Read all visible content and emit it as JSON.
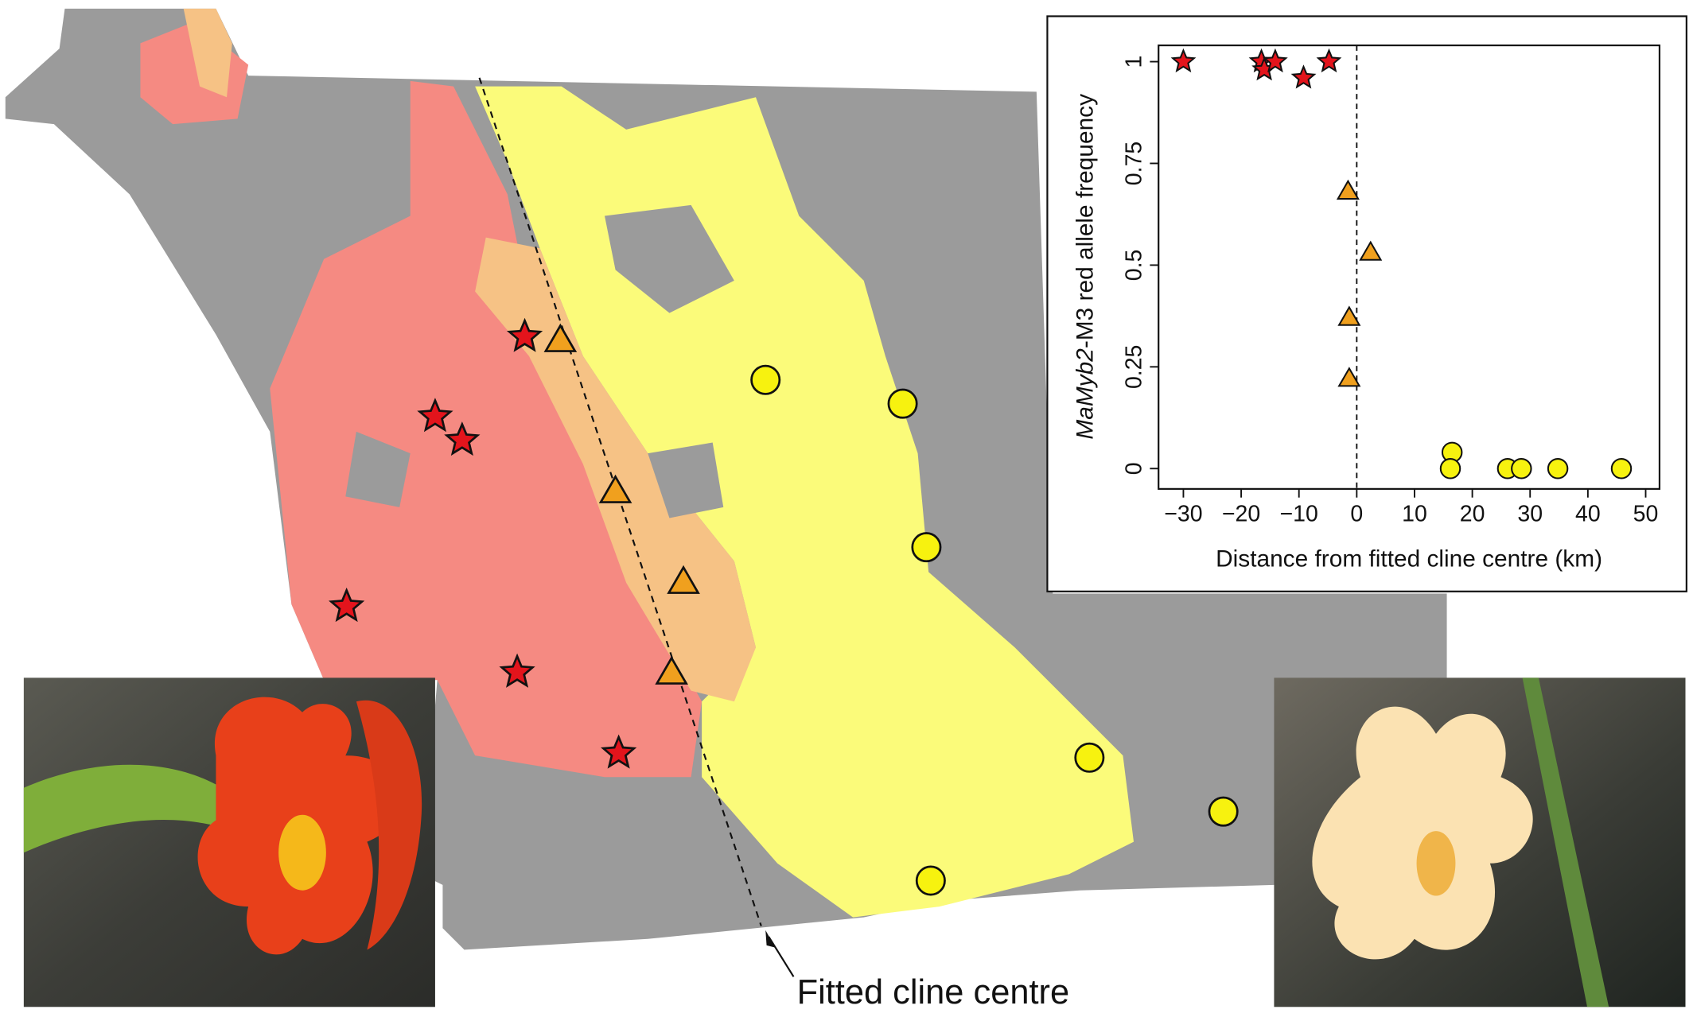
{
  "chart_data": {
    "type": "scatter",
    "xlabel": "Distance from fitted cline centre (km)",
    "ylabel": {
      "italic": "MaMyb2",
      "rest": "-M3 red allele frequency"
    },
    "xlim": [
      -34.3,
      52.4
    ],
    "ylim": [
      -0.05,
      1.04
    ],
    "xticks": [
      {
        "value": -30,
        "label": "−30"
      },
      {
        "value": -20,
        "label": "−20"
      },
      {
        "value": -10,
        "label": "−10"
      },
      0,
      10,
      20,
      30,
      40,
      50
    ],
    "yticks": [
      0,
      0.25,
      0.5,
      0.75,
      1
    ],
    "vline": 0,
    "series": [
      {
        "marker": "star",
        "color": "#e3141c",
        "x": [
          -30,
          -16.5,
          -16,
          -14.1,
          -9.2,
          -4.8
        ],
        "values": [
          1.0,
          1.0,
          0.98,
          1.0,
          0.96,
          1.0
        ]
      },
      {
        "marker": "triangle",
        "color": "#f0a01e",
        "x": [
          -1.5,
          2.4,
          -1.3,
          -1.3
        ],
        "values": [
          0.68,
          0.53,
          0.37,
          0.22
        ]
      },
      {
        "marker": "circle",
        "color": "#f7f20f",
        "x": [
          16.5,
          16.2,
          26.1,
          28.5,
          34.8,
          45.8
        ],
        "values": [
          0.04,
          0,
          0,
          0,
          0,
          0
        ]
      }
    ]
  },
  "map": {
    "annotation": "Fitted cline centre"
  }
}
